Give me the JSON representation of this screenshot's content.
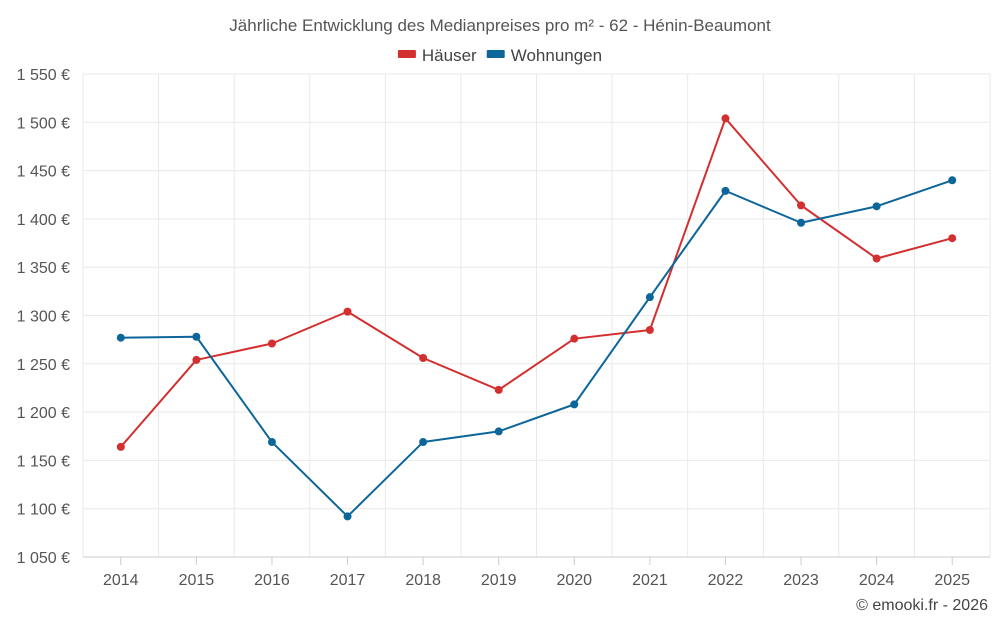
{
  "chart_data": {
    "type": "line",
    "title": "Jährliche Entwicklung des Medianpreises pro m² - 62 - Hénin-Beaumont",
    "xlabel": "",
    "ylabel": "",
    "categories": [
      "2014",
      "2015",
      "2016",
      "2017",
      "2018",
      "2019",
      "2020",
      "2021",
      "2022",
      "2023",
      "2024",
      "2025"
    ],
    "series": [
      {
        "name": "Häuser",
        "color": "#d32f2f",
        "values": [
          1164,
          1254,
          1271,
          1304,
          1256,
          1223,
          1276,
          1285,
          1504,
          1414,
          1359,
          1380
        ]
      },
      {
        "name": "Wohnungen",
        "color": "#0d6699",
        "values": [
          1277,
          1278,
          1169,
          1092,
          1169,
          1180,
          1208,
          1319,
          1429,
          1396,
          1413,
          1440
        ]
      }
    ],
    "yticks": [
      "1 050 €",
      "1 100 €",
      "1 150 €",
      "1 200 €",
      "1 250 €",
      "1 300 €",
      "1 350 €",
      "1 400 €",
      "1 450 €",
      "1 500 €",
      "1 550 €"
    ],
    "ylim": [
      1050,
      1550
    ],
    "grid": true,
    "legend_position": "top-center",
    "credit": "© emooki.fr - 2026"
  }
}
